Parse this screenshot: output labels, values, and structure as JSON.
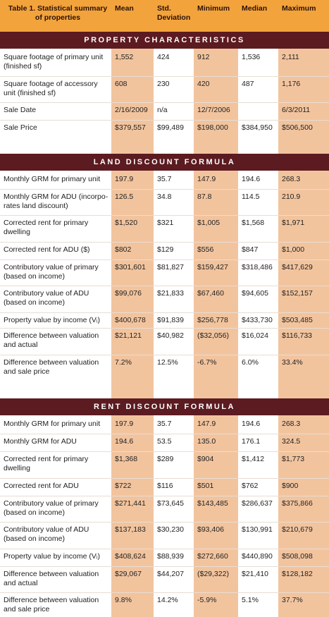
{
  "table": {
    "title": "Table 1. Statistical summary of properties",
    "columns": [
      "Mean",
      "Std. Deviation",
      "Minimum",
      "Median",
      "Maximum"
    ],
    "sections": [
      {
        "title": "PROPERTY CHARACTERISTICS",
        "rows": [
          [
            "Square footage of primary unit (finished sf)",
            "1,552",
            "424",
            "912",
            "1,536",
            "2,111"
          ],
          [
            "Square footage of accessory unit (finished sf)",
            "608",
            "230",
            "420",
            "487",
            "1,176"
          ],
          [
            "Sale Date",
            "2/16/2009",
            "n/a",
            "12/7/2006",
            null,
            "6/3/2011"
          ],
          [
            "Sale Price",
            "$379,557",
            "$99,489",
            "$198,000",
            "$384,950",
            "$506,500"
          ]
        ]
      },
      {
        "title": "LAND DISCOUNT FORMULA",
        "rows": [
          [
            "Monthly GRM for primary unit",
            "197.9",
            "35.7",
            "147.9",
            "194.6",
            "268.3"
          ],
          [
            "Monthly GRM for ADU (incorpo-rates land discount)",
            "126.5",
            "34.8",
            "87.8",
            "114.5",
            "210.9"
          ],
          [
            "Corrected rent for primary dwelling",
            "$1,520",
            "$321",
            "$1,005",
            "$1,568",
            "$1,971"
          ],
          [
            "Corrected rent for ADU ($)",
            "$802",
            "$129",
            "$556",
            "$847",
            "$1,000"
          ],
          [
            "Contributory value of primary (based on income)",
            "$301,601",
            "$81,827",
            "$159,427",
            "$318,486",
            "$417,629"
          ],
          [
            "Contributory value of ADU (based on income)",
            "$99,076",
            "$21,833",
            "$67,460",
            "$94,605",
            "$152,157"
          ],
          [
            "Property value by income (Vᵢ)",
            "$400,678",
            "$91,839",
            "$256,778",
            "$433,730",
            "$503,485"
          ],
          [
            "Difference between valuation and actual",
            "$21,121",
            "$40,982",
            "($32,056)",
            "$16,024",
            "$116,733"
          ],
          [
            "Difference between valuation and sale price",
            "7.2%",
            "12.5%",
            "-6.7%",
            "6.0%",
            "33.4%"
          ]
        ]
      },
      {
        "title": "RENT DISCOUNT FORMULA",
        "rows": [
          [
            "Monthly GRM for primary unit",
            "197.9",
            "35.7",
            "147.9",
            "194.6",
            "268.3"
          ],
          [
            "Monthly GRM for ADU",
            "194.6",
            "53.5",
            "135.0",
            "176.1",
            "324.5"
          ],
          [
            "Corrected rent for primary dwelling",
            "$1,368",
            "$289",
            "$904",
            "$1,412",
            "$1,773"
          ],
          [
            "Corrected rent for ADU",
            "$722",
            "$116",
            "$501",
            "$762",
            "$900"
          ],
          [
            "Contributory value of primary (based on income)",
            "$271,441",
            "$73,645",
            "$143,485",
            "$286,637",
            "$375,866"
          ],
          [
            "Contributory value of ADU (based on income)",
            "$137,183",
            "$30,230",
            "$93,406",
            "$130,991",
            "$210,679"
          ],
          [
            "Property value by income (Vᵢ)",
            "$408,624",
            "$88,939",
            "$272,660",
            "$440,890",
            "$508,098"
          ],
          [
            "Difference between valuation and actual",
            "$29,067",
            "$44,207",
            "($29,322)",
            "$21,410",
            "$128,182"
          ],
          [
            "Difference between valuation and sale price",
            "9.8%",
            "14.2%",
            "-5.9%",
            "5.1%",
            "37.7%"
          ]
        ]
      }
    ]
  }
}
